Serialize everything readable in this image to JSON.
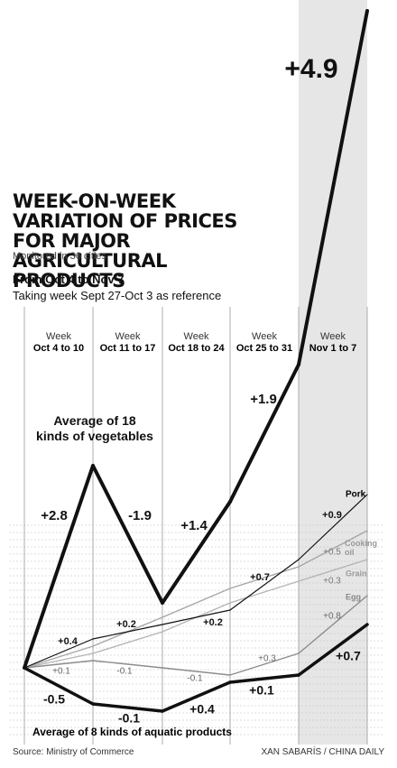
{
  "chart_data": {
    "type": "line",
    "title": "WEEK-ON-WEEK VARIATION OF PRICES FOR MAJOR AGRICULTURAL PRODUCTS",
    "subtitle": "Monitored in 36 cities",
    "period": "From Oct 4 to Nov 7",
    "reference": "Taking week Sept 27-Oct 3 as reference",
    "week_label": "Week",
    "categories": [
      "Oct 4 to 10",
      "Oct 11 to 17",
      "Oct 18 to 24",
      "Oct 25 to 31",
      "Nov 1 to 7"
    ],
    "series": [
      {
        "name": "Average of 18 kinds of vegetables",
        "color": "#111111",
        "values": [
          2.8,
          -1.9,
          1.4,
          1.9,
          4.9
        ],
        "value_labels": [
          "+2.8",
          "-1.9",
          "+1.4",
          "+1.9",
          "+4.9"
        ]
      },
      {
        "name": "Pork",
        "color": "#111111",
        "values": [
          0.4,
          0.2,
          0.2,
          0.7,
          0.9
        ],
        "value_labels": [
          "+0.4",
          "+0.2",
          "+0.2",
          "+0.7",
          "+0.9"
        ]
      },
      {
        "name": "Cooking oil",
        "color": "#a6a6a6",
        "values": [
          0.3,
          0.4,
          0.4,
          0.3,
          0.5
        ],
        "value_labels": [
          null,
          null,
          null,
          null,
          "+0.5"
        ]
      },
      {
        "name": "Grain",
        "color": "#b5b5b5",
        "values": [
          0.2,
          0.3,
          0.4,
          0.3,
          0.3
        ],
        "value_labels": [
          null,
          null,
          null,
          null,
          "+0.3"
        ]
      },
      {
        "name": "Egg",
        "color": "#8c8c8c",
        "values": [
          0.1,
          -0.1,
          -0.1,
          0.3,
          0.8
        ],
        "value_labels": [
          "+0.1",
          "-0.1",
          "-0.1",
          "+0.3",
          "+0.8"
        ]
      },
      {
        "name": "Average of 8 kinds of aquatic products",
        "color": "#111111",
        "values": [
          -0.5,
          -0.1,
          0.4,
          0.1,
          0.7
        ],
        "value_labels": [
          "-0.5",
          "-0.1",
          "+0.4",
          "+0.1",
          "+0.7"
        ]
      }
    ],
    "source": "Source: Ministry of Commerce",
    "credit": "XAN SABARÍS / CHINA DAILY"
  }
}
